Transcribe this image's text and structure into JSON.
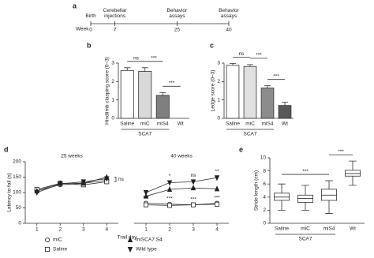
{
  "chart_data": [
    {
      "type": "timeline",
      "panel": "a",
      "xlabel": "Week",
      "x": [
        0,
        7,
        25,
        40
      ],
      "labels": [
        "Birth",
        "Cerebellar injections",
        "Behavior assays",
        "Behavior assays"
      ],
      "xlim": [
        0,
        40
      ]
    },
    {
      "type": "bar",
      "panel": "b",
      "ylabel": "Hindlimb clasping score (0–3)",
      "categories": [
        "Saline",
        "miC",
        "miS4",
        "Wt"
      ],
      "values": [
        2.6,
        2.55,
        1.25,
        0
      ],
      "errors": [
        0.15,
        0.2,
        0.15,
        0
      ],
      "colors": [
        "#ffffff",
        "#d9d9d9",
        "#7f7f7f",
        "#7f7f7f"
      ],
      "ylim": [
        0,
        3
      ],
      "yticks": [
        0,
        1,
        2,
        3
      ],
      "group": {
        "label": "SCA7",
        "from": 0,
        "to": 2
      },
      "comparisons": [
        {
          "from": 0,
          "to": 1,
          "label": "ns"
        },
        {
          "from": 1,
          "to": 2,
          "label": "***"
        },
        {
          "from": 2,
          "to": 3,
          "label": "***"
        }
      ]
    },
    {
      "type": "bar",
      "panel": "c",
      "ylabel": "Ledge score (0–3)",
      "categories": [
        "Saline",
        "miC",
        "miS4",
        "Wt"
      ],
      "values": [
        2.88,
        2.82,
        1.65,
        0.7
      ],
      "errors": [
        0.1,
        0.1,
        0.12,
        0.18
      ],
      "colors": [
        "#ffffff",
        "#e0e0e0",
        "#8c8c8c",
        "#595959"
      ],
      "ylim": [
        0,
        3
      ],
      "yticks": [
        0,
        1,
        2,
        3
      ],
      "group": {
        "label": "SCA7",
        "from": 0,
        "to": 2
      },
      "comparisons": [
        {
          "from": 0,
          "to": 1,
          "label": "ns"
        },
        {
          "from": 1,
          "to": 2,
          "label": "***"
        },
        {
          "from": 2,
          "to": 3,
          "label": "***"
        }
      ]
    },
    {
      "type": "line",
      "panel": "d",
      "ylabel": "Latency to fall (s)",
      "xlabel": "Trail day",
      "x": [
        1,
        2,
        3,
        4
      ],
      "xlim": [
        0.5,
        4.5
      ],
      "ylim": [
        0,
        200
      ],
      "yticks": [
        0,
        50,
        100,
        150,
        200
      ],
      "legend": [
        {
          "name": "miC",
          "marker": "circle"
        },
        {
          "name": "Saline",
          "marker": "square"
        },
        {
          "name": "miSCA7.S4",
          "marker": "triangle"
        },
        {
          "name": "Wild type",
          "marker": "triangle-down"
        }
      ],
      "subplots": [
        {
          "title": "25 weeks",
          "side_label": "ns",
          "series": [
            {
              "values": [
                105,
                125,
                130,
                140
              ]
            },
            {
              "values": [
                110,
                130,
                125,
                135
              ]
            },
            {
              "values": [
                105,
                130,
                130,
                150
              ]
            },
            {
              "values": [
                100,
                128,
                135,
                145
              ]
            }
          ]
        },
        {
          "title": "40 weeks",
          "series": [
            {
              "values": [
                65,
                62,
                60,
                65
              ]
            },
            {
              "values": [
                60,
                58,
                60,
                62
              ]
            },
            {
              "values": [
                88,
                110,
                115,
                112
              ]
            },
            {
              "values": [
                100,
                132,
                135,
                148
              ]
            }
          ],
          "top_marks": [
            {
              "x": 2,
              "label": "*"
            },
            {
              "x": 3,
              "label": "ns"
            },
            {
              "x": 4,
              "label": "**"
            }
          ],
          "bottom_marks": [
            {
              "x": 1,
              "label": "***"
            },
            {
              "x": 2,
              "label": "***"
            },
            {
              "x": 3,
              "label": "***"
            },
            {
              "x": 4,
              "label": "***"
            }
          ]
        }
      ]
    },
    {
      "type": "box",
      "panel": "e",
      "ylabel": "Stride length (cm)",
      "categories": [
        "Saline",
        "miC",
        "miS4",
        "Wt"
      ],
      "ylim": [
        0,
        10
      ],
      "yticks": [
        0,
        2,
        4,
        6,
        8,
        10
      ],
      "boxes": [
        {
          "whislo": 2,
          "q1": 3.5,
          "med": 4,
          "q3": 4.6,
          "whishi": 6
        },
        {
          "whislo": 2,
          "q1": 3.2,
          "med": 3.8,
          "q3": 4.3,
          "whishi": 5.8
        },
        {
          "whislo": 1.5,
          "q1": 3.5,
          "med": 4.3,
          "q3": 5.2,
          "whishi": 6.5
        },
        {
          "whislo": 5.8,
          "q1": 7.2,
          "med": 7.6,
          "q3": 8.1,
          "whishi": 9.5
        }
      ],
      "group": {
        "label": "SCA7",
        "from": 0,
        "to": 2
      },
      "comparisons": [
        {
          "from": 0,
          "to": 2,
          "label": "***"
        },
        {
          "from": 2,
          "to": 3,
          "label": "***"
        }
      ]
    }
  ]
}
